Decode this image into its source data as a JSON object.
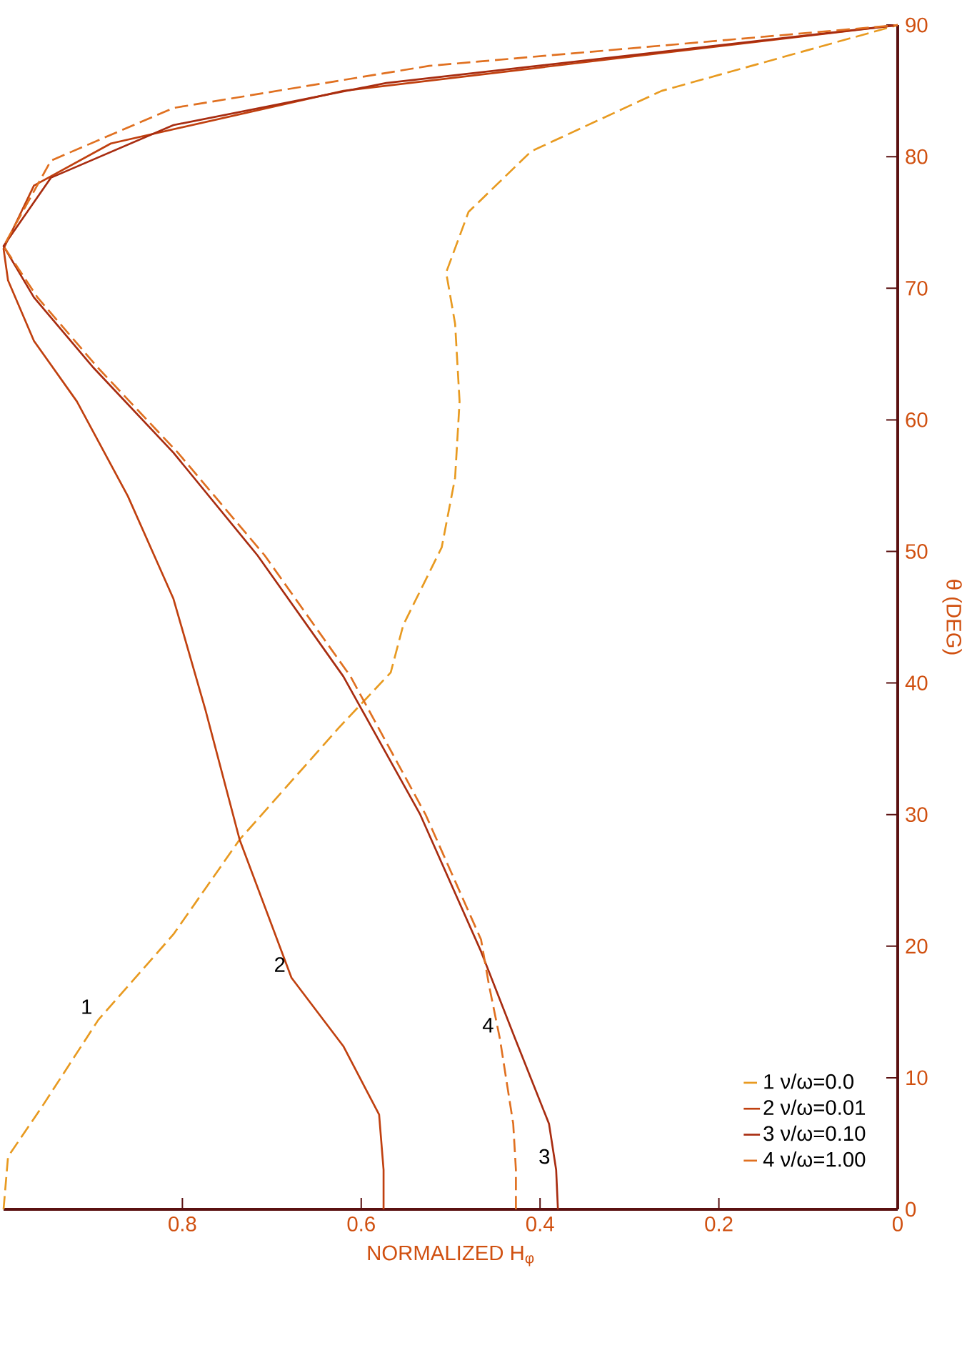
{
  "chart_data": {
    "type": "line",
    "xlabel": "NORMALIZED H$_{φ}$",
    "ylabel": "θ (DEG)",
    "xlim": [
      1.0,
      0
    ],
    "ylim": [
      0,
      90
    ],
    "xticks": [
      0.8,
      0.6,
      0.4,
      0.2,
      0
    ],
    "yticks": [
      0,
      10,
      20,
      30,
      40,
      50,
      60,
      70,
      80,
      90
    ],
    "legend": "bottom right",
    "grid": false,
    "series": [
      {
        "name": "1 ν/ω=0.0",
        "color": "#e89a20",
        "line_style": "dashed",
        "values": [
          0,
          4,
          7.8,
          14.4,
          20.9,
          28.1,
          36.6,
          40.8,
          44.4,
          50.3,
          55.6,
          61.4,
          67.3,
          71.2,
          75.8,
          80.4,
          85,
          90
        ],
        "x": [
          1.0,
          0.995,
          0.957,
          0.894,
          0.81,
          0.736,
          0.625,
          0.567,
          0.553,
          0.51,
          0.495,
          0.49,
          0.495,
          0.505,
          0.48,
          0.41,
          0.264,
          0
        ]
      },
      {
        "name": "2 ν/ω=0.01",
        "color": "#c0400f",
        "line_style": "solid",
        "values": [
          0,
          3,
          7.2,
          12.4,
          17.6,
          28.1,
          37.9,
          46.4,
          54.2,
          61.4,
          66,
          70.6,
          73,
          77.8,
          81,
          85,
          90
        ],
        "x": [
          0.575,
          0.575,
          0.58,
          0.62,
          0.678,
          0.736,
          0.774,
          0.81,
          0.861,
          0.918,
          0.966,
          0.995,
          1.0,
          0.966,
          0.88,
          0.62,
          0
        ]
      },
      {
        "name": "3 ν/ω=0.10",
        "color": "#a82c10",
        "line_style": "solid",
        "values": [
          0,
          3,
          6.5,
          13,
          19.6,
          30,
          40.5,
          49.7,
          57.5,
          64,
          69.3,
          73.2,
          78.4,
          82.4,
          85.6,
          90
        ],
        "x": [
          0.38,
          0.382,
          0.39,
          0.428,
          0.466,
          0.534,
          0.62,
          0.716,
          0.81,
          0.9,
          0.966,
          1.0,
          0.947,
          0.81,
          0.572,
          0
        ]
      },
      {
        "name": "4 ν/ω=1.00",
        "color": "#e07020",
        "line_style": "dashed",
        "values": [
          0,
          3,
          6.5,
          13,
          17,
          20.5,
          30,
          40.5,
          49.7,
          57.5,
          64,
          69.3,
          73.2,
          79.7,
          83.7,
          86.9,
          90
        ],
        "x": [
          0.427,
          0.427,
          0.43,
          0.445,
          0.457,
          0.466,
          0.528,
          0.612,
          0.708,
          0.805,
          0.895,
          0.962,
          1.0,
          0.947,
          0.81,
          0.524,
          0
        ]
      }
    ],
    "annotations": [
      {
        "text": "1",
        "x": 0.894,
        "y": 14.4
      },
      {
        "text": "2",
        "x": 0.678,
        "y": 17.6
      },
      {
        "text": "3",
        "x": 0.382,
        "y": 3
      },
      {
        "text": "4",
        "x": 0.445,
        "y": 13
      }
    ]
  }
}
